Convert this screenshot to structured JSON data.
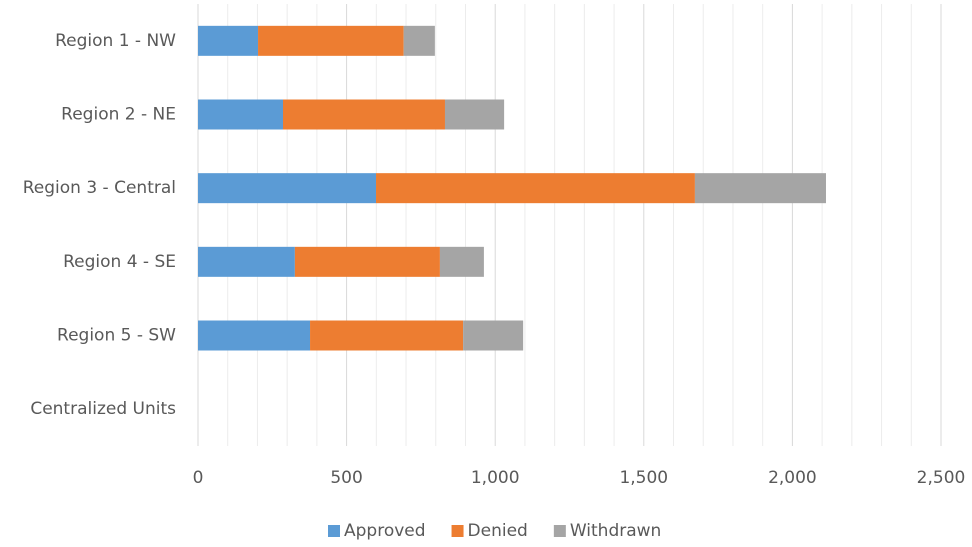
{
  "chart_data": {
    "type": "stacked_barh",
    "categories": [
      "Region 1 - NW",
      "Region 2 - NE",
      "Region 3 - Central",
      "Region 4 - SE",
      "Region 5 - SW",
      "Centralized Units"
    ],
    "series": [
      {
        "name": "Approved",
        "color": "#5b9bd5",
        "values": [
          202,
          286,
          599,
          326,
          377,
          0
        ]
      },
      {
        "name": "Denied",
        "color": "#ed7d31",
        "values": [
          490,
          545,
          1073,
          488,
          515,
          0
        ]
      },
      {
        "name": "Withdrawn",
        "color": "#a5a5a5",
        "values": [
          105,
          199,
          441,
          148,
          202,
          0
        ]
      }
    ],
    "xlim": [
      0,
      2500
    ],
    "xticks": [
      0,
      500,
      {
        "value": 1000,
        "label": "1,000"
      },
      {
        "value": 1500,
        "label": "1,500"
      },
      {
        "value": 2000,
        "label": "2,000"
      },
      {
        "value": 2500,
        "label": "2,500"
      }
    ],
    "minor_xticks": [
      100,
      200,
      300,
      400,
      600,
      700,
      800,
      900,
      1100,
      1200,
      1300,
      1400,
      1600,
      1700,
      1800,
      1900,
      2100,
      2200,
      2300,
      2400
    ],
    "grid": true,
    "legend": "bottom"
  }
}
